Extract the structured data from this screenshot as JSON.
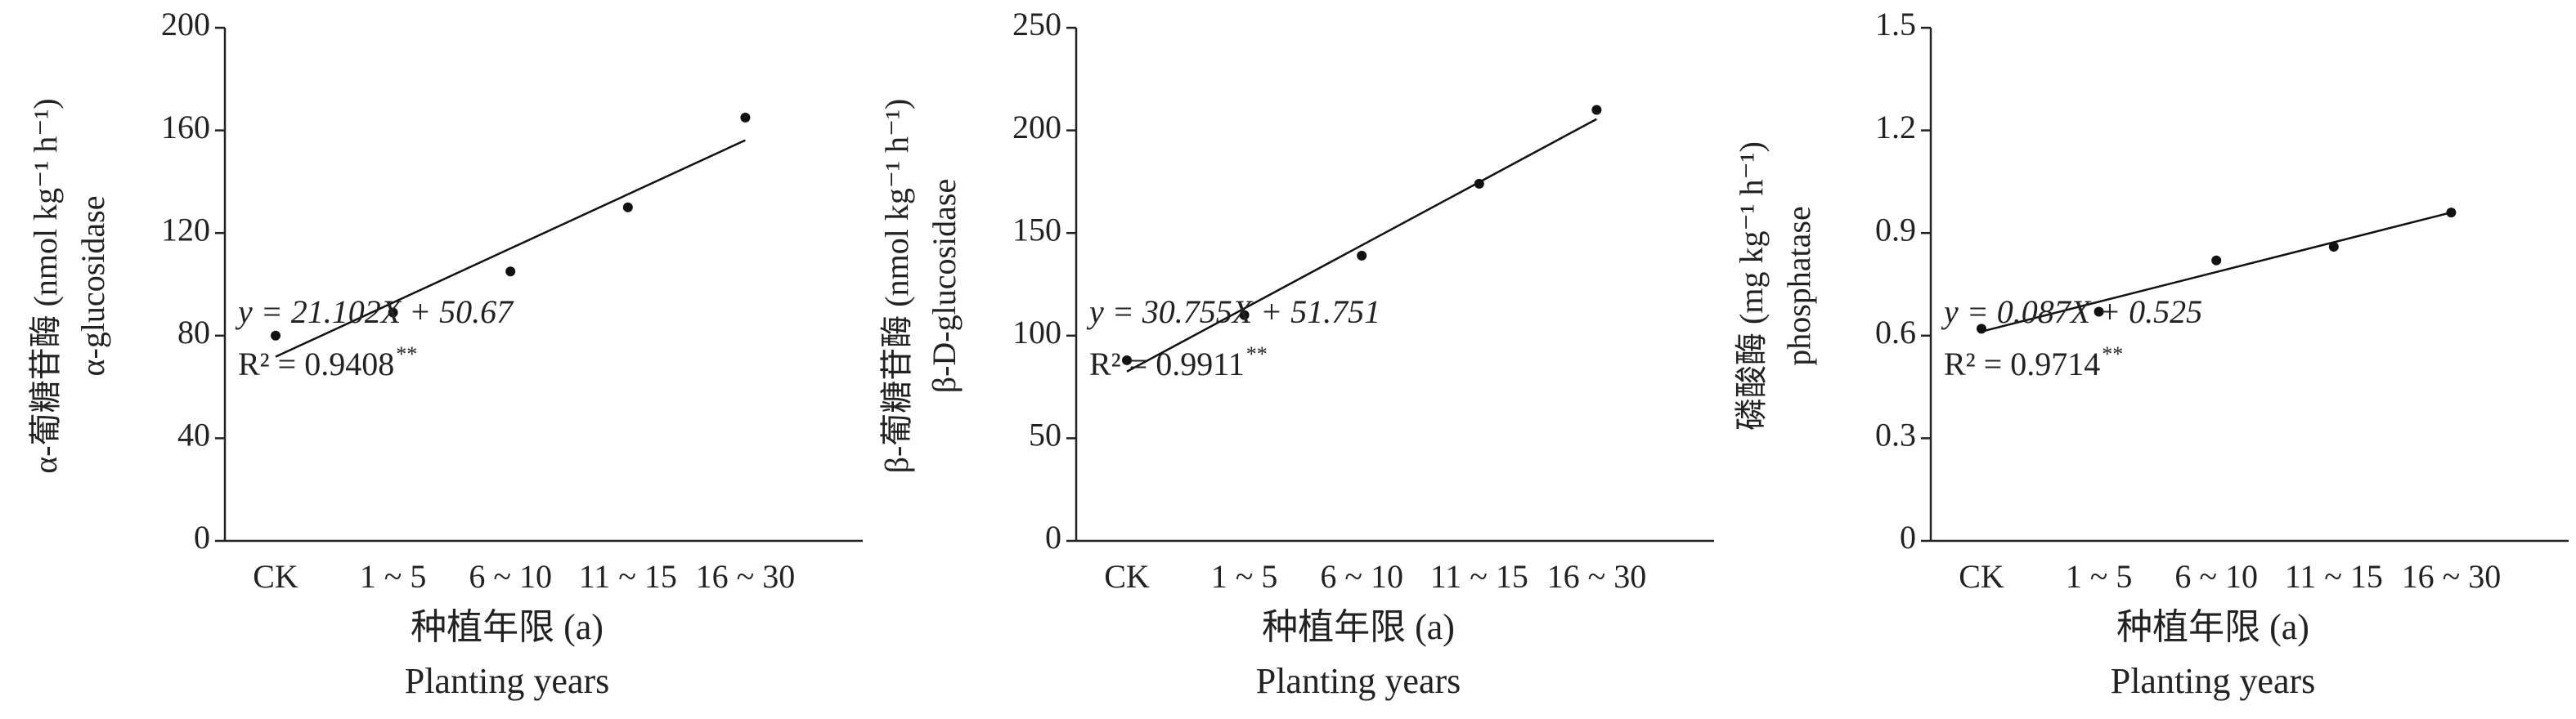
{
  "chart_data": [
    {
      "type": "scatter",
      "categories": [
        "CK",
        "1 ~ 5",
        "6 ~ 10",
        "11 ~ 15",
        "16 ~ 30"
      ],
      "values": [
        80,
        89,
        105,
        130,
        165
      ],
      "color": "#111111",
      "ylim": [
        0,
        200
      ],
      "yticks": [
        0,
        40,
        80,
        120,
        160,
        200
      ],
      "y_label": [
        "α-葡糖苷酶 (nmol kg⁻¹ h⁻¹)",
        "α-glucosidase"
      ],
      "x_label": [
        "种植年限 (a)",
        "Planting years"
      ],
      "trend": {
        "slope": 21.102,
        "intercept": 50.67,
        "equation": "y = 21.102X + 50.67",
        "r2": "R² = 0.9408",
        "significance": "**"
      }
    },
    {
      "type": "scatter",
      "categories": [
        "CK",
        "1 ~ 5",
        "6 ~ 10",
        "11 ~ 15",
        "16 ~ 30"
      ],
      "values": [
        88,
        110,
        139,
        174,
        210
      ],
      "color": "#111111",
      "ylim": [
        0,
        250
      ],
      "yticks": [
        0,
        50,
        100,
        150,
        200,
        250
      ],
      "y_label": [
        "β-葡糖苷酶 (nmol kg⁻¹ h⁻¹)",
        "β-D-glucosidase"
      ],
      "x_label": [
        "种植年限 (a)",
        "Planting years"
      ],
      "trend": {
        "slope": 30.755,
        "intercept": 51.751,
        "equation": "y = 30.755X + 51.751",
        "r2": "R² = 0.9911",
        "significance": "**"
      }
    },
    {
      "type": "scatter",
      "categories": [
        "CK",
        "1 ~ 5",
        "6 ~ 10",
        "11 ~ 15",
        "16 ~ 30"
      ],
      "values": [
        0.62,
        0.67,
        0.82,
        0.86,
        0.96
      ],
      "color": "#111111",
      "ylim": [
        0,
        1.5
      ],
      "yticks": [
        0,
        0.3,
        0.6,
        0.9,
        1.2,
        1.5
      ],
      "y_label": [
        "磷酸酶 (mg kg⁻¹ h⁻¹)",
        "phosphatase"
      ],
      "x_label": [
        "种植年限 (a)",
        "Planting years"
      ],
      "trend": {
        "slope": 0.087,
        "intercept": 0.525,
        "equation": "y = 0.087X + 0.525",
        "r2": "R² = 0.9714",
        "significance": "**"
      }
    }
  ]
}
